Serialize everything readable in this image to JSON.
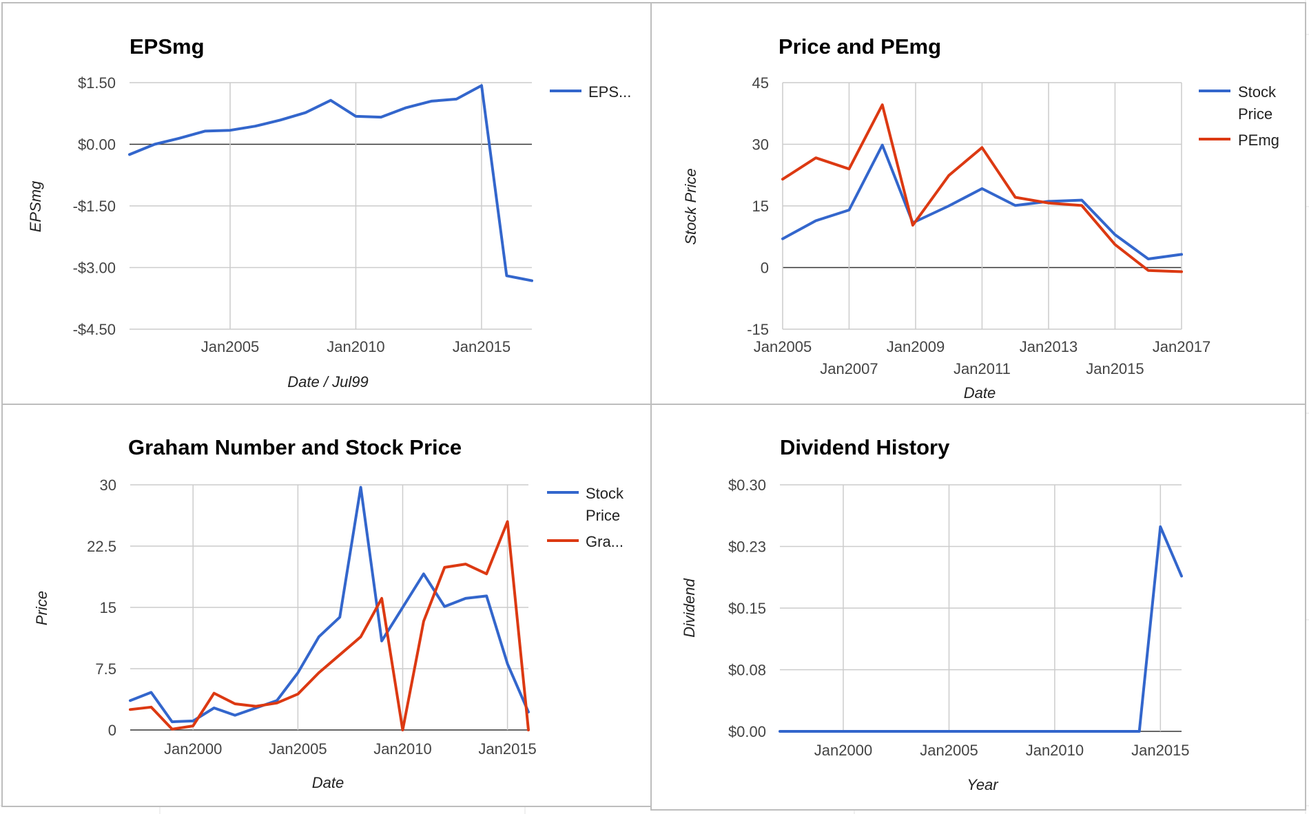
{
  "colors": {
    "blue": "#3366cc",
    "red": "#dc3912",
    "grid": "#cccccc",
    "baseline": "#333333"
  },
  "chart_data": [
    {
      "id": "epsmg",
      "type": "line",
      "title": "EPSmg",
      "xlabel": "Date / Jul99",
      "ylabel": "EPSmg",
      "x_type": "date",
      "xlim": [
        "2001-01-01",
        "2017-01-01"
      ],
      "ylim": [
        -4.5,
        1.5
      ],
      "yticks": [
        1.5,
        0,
        -1.5,
        -3,
        -4.5
      ],
      "ytick_labels": [
        "$1.50",
        "$0.00",
        "-$1.50",
        "-$3.00",
        "-$4.50"
      ],
      "xticks": [
        "2005-01-01",
        "2010-01-01",
        "2015-01-01"
      ],
      "xtick_labels": [
        "Jan2005",
        "Jan2010",
        "Jan2015"
      ],
      "legend": "right",
      "series": [
        {
          "name": "EPS...",
          "color": "#3366cc",
          "x": [
            "2001-01-01",
            "2002-01-01",
            "2003-01-01",
            "2004-01-01",
            "2005-01-01",
            "2006-01-01",
            "2007-01-01",
            "2008-01-01",
            "2009-01-01",
            "2010-01-01",
            "2011-01-01",
            "2012-01-01",
            "2013-01-01",
            "2014-01-01",
            "2015-01-01",
            "2016-01-01",
            "2017-01-01"
          ],
          "values": [
            -0.25,
            0.0,
            0.15,
            0.32,
            0.34,
            0.44,
            0.59,
            0.77,
            1.07,
            0.68,
            0.66,
            0.89,
            1.05,
            1.1,
            1.43,
            -3.2,
            -3.32
          ]
        }
      ]
    },
    {
      "id": "price_pemg",
      "type": "line",
      "title": "Price and PEmg",
      "xlabel": "Date",
      "ylabel": "Stock Price",
      "x_type": "date",
      "xlim": [
        "2005-01-01",
        "2017-01-01"
      ],
      "ylim": [
        -15,
        45
      ],
      "yticks": [
        45,
        30,
        15,
        0,
        -15
      ],
      "ytick_labels": [
        "45",
        "30",
        "15",
        "0",
        "-15"
      ],
      "xticks": [
        "2005-01-01",
        "2007-01-01",
        "2009-01-01",
        "2011-01-01",
        "2013-01-01",
        "2015-01-01",
        "2017-01-01"
      ],
      "xtick_labels": [
        "Jan2005",
        "Jan2007",
        "Jan2009",
        "Jan2011",
        "Jan2013",
        "Jan2015",
        "Jan2017"
      ],
      "legend": "right",
      "series": [
        {
          "name_lines": [
            "Stock",
            "Price"
          ],
          "color": "#3366cc",
          "x": [
            "2005-01-01",
            "2006-01-01",
            "2007-01-01",
            "2008-01-01",
            "2008-12-01",
            "2010-01-01",
            "2011-01-01",
            "2012-01-01",
            "2013-01-01",
            "2014-01-01",
            "2015-01-01",
            "2016-01-01",
            "2017-01-01"
          ],
          "values": [
            7,
            11.4,
            14,
            29.8,
            10.9,
            15,
            19.2,
            15.1,
            16.1,
            16.4,
            8,
            2.1,
            3.2
          ]
        },
        {
          "name": "PEmg",
          "color": "#dc3912",
          "x": [
            "2005-01-01",
            "2006-01-01",
            "2007-01-01",
            "2008-01-01",
            "2008-12-01",
            "2010-01-01",
            "2011-01-01",
            "2012-01-01",
            "2013-01-01",
            "2014-01-01",
            "2015-01-01",
            "2016-01-01",
            "2017-01-01"
          ],
          "values": [
            21.5,
            26.7,
            24,
            39.6,
            10.3,
            22.4,
            29.2,
            17.1,
            15.7,
            15.1,
            5.6,
            -0.7,
            -1
          ]
        }
      ]
    },
    {
      "id": "graham",
      "type": "line",
      "title": "Graham Number and Stock Price",
      "xlabel": "Date",
      "ylabel": "Price",
      "x_type": "date",
      "xlim": [
        "1997-01-01",
        "2016-01-01"
      ],
      "ylim": [
        0,
        30
      ],
      "yticks": [
        30,
        22.5,
        15,
        7.5,
        0
      ],
      "ytick_labels": [
        "30",
        "22.5",
        "15",
        "7.5",
        "0"
      ],
      "xticks": [
        "2000-01-01",
        "2005-01-01",
        "2010-01-01",
        "2015-01-01"
      ],
      "xtick_labels": [
        "Jan2000",
        "Jan2005",
        "Jan2010",
        "Jan2015"
      ],
      "legend": "right",
      "series": [
        {
          "name_lines": [
            "Stock",
            "Price"
          ],
          "color": "#3366cc",
          "x": [
            "1997-01-01",
            "1998-01-01",
            "1999-01-01",
            "2000-01-01",
            "2001-01-01",
            "2002-01-01",
            "2003-01-01",
            "2004-01-01",
            "2005-01-01",
            "2006-01-01",
            "2007-01-01",
            "2008-01-01",
            "2009-01-01",
            "2010-01-01",
            "2011-01-01",
            "2012-01-01",
            "2013-01-01",
            "2014-01-01",
            "2015-01-01",
            "2016-01-01"
          ],
          "values": [
            3.6,
            4.6,
            1.0,
            1.1,
            2.7,
            1.8,
            2.7,
            3.6,
            7.0,
            11.4,
            13.8,
            29.7,
            10.9,
            15.0,
            19.1,
            15.1,
            16.1,
            16.4,
            8.1,
            2.2
          ]
        },
        {
          "name": "Gra...",
          "color": "#dc3912",
          "x": [
            "1997-01-01",
            "1998-01-01",
            "1999-01-01",
            "2000-01-01",
            "2001-01-01",
            "2002-01-01",
            "2003-01-01",
            "2004-01-01",
            "2005-01-01",
            "2006-01-01",
            "2007-01-01",
            "2008-01-01",
            "2009-01-01",
            "2010-01-01",
            "2011-01-01",
            "2012-01-01",
            "2013-01-01",
            "2014-01-01",
            "2015-01-01",
            "2016-01-01"
          ],
          "values": [
            2.5,
            2.8,
            0.1,
            0.5,
            4.5,
            3.2,
            2.9,
            3.3,
            4.4,
            7.0,
            9.2,
            11.4,
            16.1,
            0.0,
            13.3,
            19.9,
            20.3,
            19.1,
            25.5,
            0.0
          ]
        }
      ]
    },
    {
      "id": "dividend",
      "type": "line",
      "title": "Dividend History",
      "xlabel": "Year",
      "ylabel": "Dividend",
      "x_type": "date",
      "xlim": [
        "1997-01-01",
        "2016-01-01"
      ],
      "ylim": [
        0,
        0.3
      ],
      "yticks": [
        0.3,
        0.225,
        0.15,
        0.075,
        0
      ],
      "ytick_labels": [
        "$0.30",
        "$0.23",
        "$0.15",
        "$0.08",
        "$0.00"
      ],
      "xticks": [
        "2000-01-01",
        "2005-01-01",
        "2010-01-01",
        "2015-01-01"
      ],
      "xtick_labels": [
        "Jan2000",
        "Jan2005",
        "Jan2010",
        "Jan2015"
      ],
      "legend": "none",
      "series": [
        {
          "color": "#3366cc",
          "x": [
            "1997-01-01",
            "1998-01-01",
            "1999-01-01",
            "2000-01-01",
            "2001-01-01",
            "2002-01-01",
            "2003-01-01",
            "2004-01-01",
            "2005-01-01",
            "2006-01-01",
            "2007-01-01",
            "2008-01-01",
            "2009-01-01",
            "2010-01-01",
            "2011-01-01",
            "2012-01-01",
            "2013-01-01",
            "2014-01-01",
            "2015-01-01",
            "2016-01-01"
          ],
          "values": [
            0,
            0,
            0,
            0,
            0,
            0,
            0,
            0,
            0,
            0,
            0,
            0,
            0,
            0,
            0,
            0,
            0,
            0,
            0.249,
            0.189
          ]
        }
      ]
    }
  ]
}
